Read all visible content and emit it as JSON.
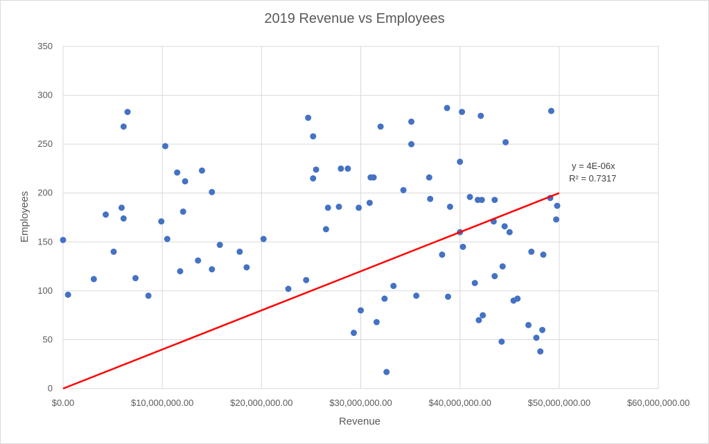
{
  "chart_data": {
    "type": "scatter",
    "title": "2019 Revenue vs Employees",
    "xlabel": "Revenue",
    "ylabel": "Employees",
    "xlim": [
      0,
      60000000
    ],
    "ylim": [
      0,
      350
    ],
    "x_tick_labels": [
      "$0.00",
      "$10,000,000.00",
      "$20,000,000.00",
      "$30,000,000.00",
      "$40,000,000.00",
      "$50,000,000.00",
      "$60,000,000.00"
    ],
    "x_ticks": [
      0,
      10000000,
      20000000,
      30000000,
      40000000,
      50000000,
      60000000
    ],
    "y_tick_labels": [
      "0",
      "50",
      "100",
      "150",
      "200",
      "250",
      "300",
      "350"
    ],
    "y_ticks": [
      0,
      50,
      100,
      150,
      200,
      250,
      300,
      350
    ],
    "grid": true,
    "colors": {
      "points": "#4472c4",
      "trendline": "#ff0000"
    },
    "trendline": {
      "slope": 4e-06,
      "x_range": [
        0,
        50000000
      ],
      "equation": "y = 4E-06x",
      "r_squared": "R² = 0.7317"
    },
    "series": [
      {
        "x": [
          6100000,
          6500000,
          10300000,
          12100000,
          14000000,
          15000000,
          24700000,
          25200000,
          25500000,
          28700000,
          32000000,
          35100000,
          38700000,
          40200000,
          42100000,
          44600000,
          49200000,
          40000000,
          31000000,
          36900000,
          34300000,
          37000000,
          41000000,
          42200000,
          43500000,
          49100000,
          6100000,
          9900000,
          11500000,
          12300000,
          0,
          10500000,
          11800000,
          35100000,
          39000000,
          41800000,
          43400000,
          44500000,
          45000000,
          47200000,
          48400000,
          49700000,
          29800000,
          26700000,
          31300000,
          49800000,
          4300000,
          500000,
          3100000,
          28000000,
          30900000,
          25200000,
          40000000,
          40300000,
          44300000,
          48300000,
          47700000,
          46900000,
          45800000,
          44200000,
          41900000,
          41500000,
          38200000,
          38800000,
          35600000,
          33300000,
          32400000,
          31600000,
          30000000,
          29300000,
          32600000,
          43500000,
          42300000,
          48100000,
          45400000,
          13600000,
          15800000,
          17800000,
          20200000,
          22700000,
          24500000,
          26500000,
          27800000,
          18500000,
          15000000,
          8600000,
          7300000,
          5100000,
          5900000
        ],
        "y": [
          268,
          283,
          248,
          181,
          223,
          201,
          277,
          258,
          224,
          225,
          268,
          273,
          287,
          283,
          279,
          252,
          284,
          232,
          216,
          216,
          203,
          194,
          196,
          193,
          193,
          195,
          174,
          171,
          221,
          212,
          152,
          153,
          120,
          250,
          186,
          193,
          171,
          166,
          160,
          140,
          137,
          173,
          185,
          185,
          216,
          187,
          178,
          96,
          112,
          225,
          190,
          215,
          160,
          145,
          125,
          60,
          52,
          65,
          92,
          48,
          70,
          108,
          137,
          94,
          95,
          105,
          92,
          68,
          80,
          57,
          17,
          115,
          75,
          38,
          90,
          131,
          147,
          140,
          153,
          102,
          111,
          163,
          186,
          124,
          122,
          95,
          113,
          140,
          185
        ]
      }
    ]
  }
}
